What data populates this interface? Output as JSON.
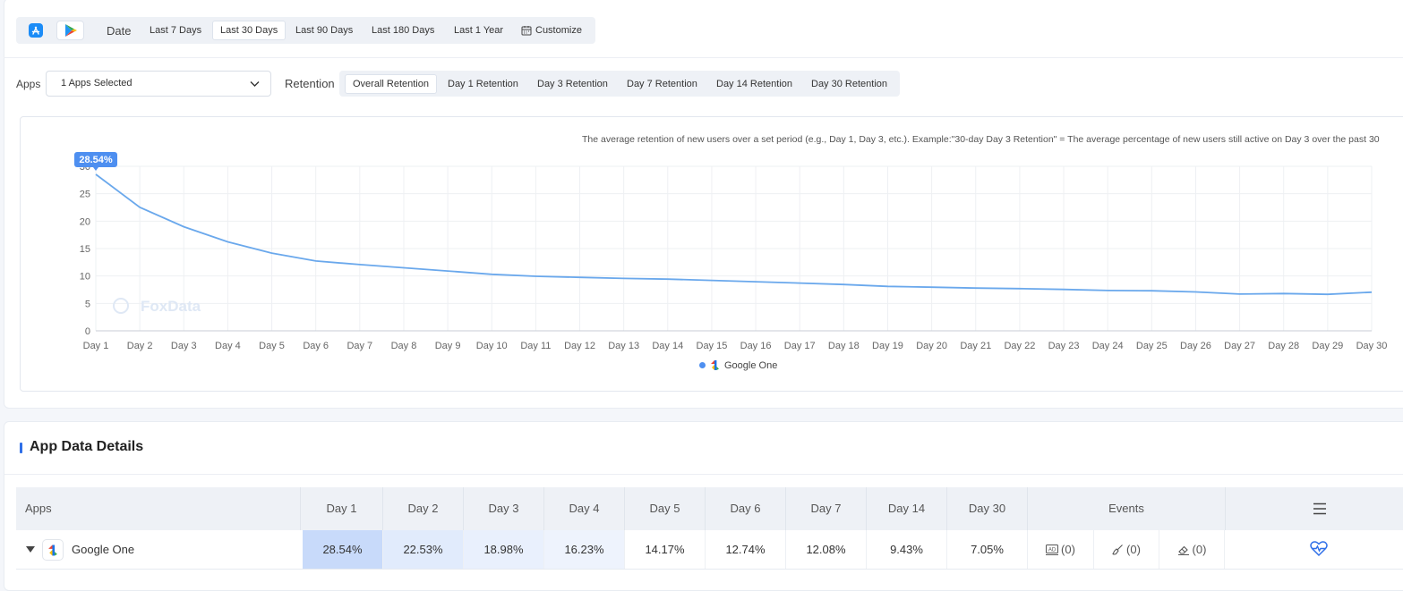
{
  "date_filter": {
    "label": "Date",
    "options": [
      "Last 7 Days",
      "Last 30 Days",
      "Last 90 Days",
      "Last 180 Days",
      "Last 1 Year",
      "Customize"
    ],
    "selected": "Last 30 Days"
  },
  "filters": {
    "apps_label": "Apps",
    "apps_value": "1 Apps Selected",
    "retention_label": "Retention",
    "retention_options": [
      "Overall Retention",
      "Day 1 Retention",
      "Day 3 Retention",
      "Day 7 Retention",
      "Day 14 Retention",
      "Day 30 Retention"
    ],
    "retention_selected": "Overall Retention"
  },
  "chart": {
    "description": "The average retention of new users over a set period (e.g., Day 1, Day 3, etc.). Example:\"30-day Day 3 Retention\" = The average percentage of new users still active on Day 3 over the past 30",
    "watermark": "FoxData",
    "tooltip": "28.54%",
    "legend": "Google One",
    "line_color": "#6aa8ec"
  },
  "chart_data": {
    "type": "line",
    "x": [
      "Day 1",
      "Day 2",
      "Day 3",
      "Day 4",
      "Day 5",
      "Day 6",
      "Day 7",
      "Day 8",
      "Day 9",
      "Day 10",
      "Day 11",
      "Day 12",
      "Day 13",
      "Day 14",
      "Day 15",
      "Day 16",
      "Day 17",
      "Day 18",
      "Day 19",
      "Day 20",
      "Day 21",
      "Day 22",
      "Day 23",
      "Day 24",
      "Day 25",
      "Day 26",
      "Day 27",
      "Day 28",
      "Day 29",
      "Day 30"
    ],
    "yticks": [
      "0",
      "5",
      "10",
      "15",
      "20",
      "25",
      "30"
    ],
    "ylim": [
      0,
      30
    ],
    "grid": true,
    "series": [
      {
        "name": "Google One",
        "values": [
          28.54,
          22.53,
          18.98,
          16.23,
          14.17,
          12.74,
          12.08,
          11.5,
          10.9,
          10.3,
          9.95,
          9.75,
          9.55,
          9.43,
          9.2,
          8.95,
          8.7,
          8.45,
          8.1,
          7.95,
          7.8,
          7.7,
          7.55,
          7.35,
          7.3,
          7.1,
          6.7,
          6.8,
          6.65,
          7.05
        ]
      }
    ]
  },
  "details": {
    "title": "App Data Details",
    "columns": [
      "Apps",
      "Day 1",
      "Day 2",
      "Day 3",
      "Day 4",
      "Day 5",
      "Day 6",
      "Day 7",
      "Day 14",
      "Day 30",
      "Events"
    ],
    "rows": [
      {
        "app": "Google One",
        "values": [
          "28.54%",
          "22.53%",
          "18.98%",
          "16.23%",
          "14.17%",
          "12.74%",
          "12.08%",
          "9.43%",
          "7.05%"
        ],
        "events": [
          "(0)",
          "(0)",
          "(0)"
        ]
      }
    ]
  },
  "colors": {
    "accent": "#2f6fe8",
    "line": "#6aa8ec"
  }
}
